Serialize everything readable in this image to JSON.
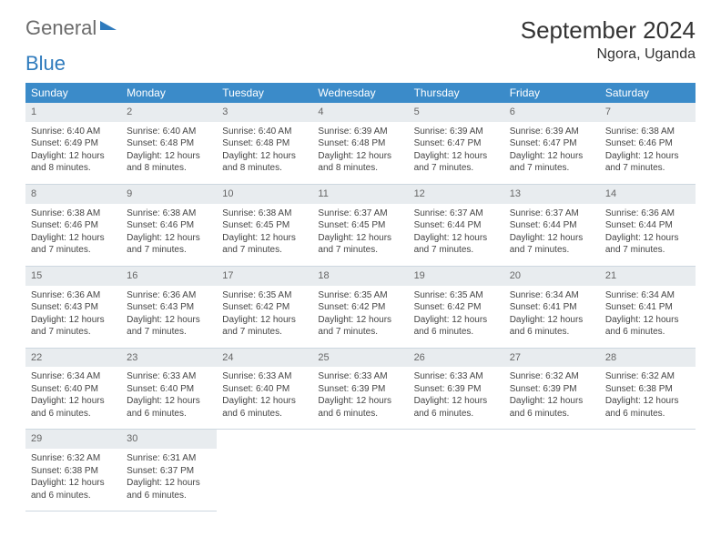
{
  "logo": {
    "word1": "General",
    "word2": "Blue"
  },
  "title": "September 2024",
  "location": "Ngora, Uganda",
  "weekdays": [
    "Sunday",
    "Monday",
    "Tuesday",
    "Wednesday",
    "Thursday",
    "Friday",
    "Saturday"
  ],
  "colors": {
    "header_bg": "#3b8bc9",
    "header_text": "#ffffff",
    "daynum_bg": "#e8ecef",
    "cell_border": "#cdd7e0",
    "logo_gray": "#6b6b6b",
    "logo_blue": "#2f7bbd"
  },
  "weeks": [
    [
      {
        "n": "1",
        "sr": "Sunrise: 6:40 AM",
        "ss": "Sunset: 6:49 PM",
        "dl": "Daylight: 12 hours and 8 minutes."
      },
      {
        "n": "2",
        "sr": "Sunrise: 6:40 AM",
        "ss": "Sunset: 6:48 PM",
        "dl": "Daylight: 12 hours and 8 minutes."
      },
      {
        "n": "3",
        "sr": "Sunrise: 6:40 AM",
        "ss": "Sunset: 6:48 PM",
        "dl": "Daylight: 12 hours and 8 minutes."
      },
      {
        "n": "4",
        "sr": "Sunrise: 6:39 AM",
        "ss": "Sunset: 6:48 PM",
        "dl": "Daylight: 12 hours and 8 minutes."
      },
      {
        "n": "5",
        "sr": "Sunrise: 6:39 AM",
        "ss": "Sunset: 6:47 PM",
        "dl": "Daylight: 12 hours and 7 minutes."
      },
      {
        "n": "6",
        "sr": "Sunrise: 6:39 AM",
        "ss": "Sunset: 6:47 PM",
        "dl": "Daylight: 12 hours and 7 minutes."
      },
      {
        "n": "7",
        "sr": "Sunrise: 6:38 AM",
        "ss": "Sunset: 6:46 PM",
        "dl": "Daylight: 12 hours and 7 minutes."
      }
    ],
    [
      {
        "n": "8",
        "sr": "Sunrise: 6:38 AM",
        "ss": "Sunset: 6:46 PM",
        "dl": "Daylight: 12 hours and 7 minutes."
      },
      {
        "n": "9",
        "sr": "Sunrise: 6:38 AM",
        "ss": "Sunset: 6:46 PM",
        "dl": "Daylight: 12 hours and 7 minutes."
      },
      {
        "n": "10",
        "sr": "Sunrise: 6:38 AM",
        "ss": "Sunset: 6:45 PM",
        "dl": "Daylight: 12 hours and 7 minutes."
      },
      {
        "n": "11",
        "sr": "Sunrise: 6:37 AM",
        "ss": "Sunset: 6:45 PM",
        "dl": "Daylight: 12 hours and 7 minutes."
      },
      {
        "n": "12",
        "sr": "Sunrise: 6:37 AM",
        "ss": "Sunset: 6:44 PM",
        "dl": "Daylight: 12 hours and 7 minutes."
      },
      {
        "n": "13",
        "sr": "Sunrise: 6:37 AM",
        "ss": "Sunset: 6:44 PM",
        "dl": "Daylight: 12 hours and 7 minutes."
      },
      {
        "n": "14",
        "sr": "Sunrise: 6:36 AM",
        "ss": "Sunset: 6:44 PM",
        "dl": "Daylight: 12 hours and 7 minutes."
      }
    ],
    [
      {
        "n": "15",
        "sr": "Sunrise: 6:36 AM",
        "ss": "Sunset: 6:43 PM",
        "dl": "Daylight: 12 hours and 7 minutes."
      },
      {
        "n": "16",
        "sr": "Sunrise: 6:36 AM",
        "ss": "Sunset: 6:43 PM",
        "dl": "Daylight: 12 hours and 7 minutes."
      },
      {
        "n": "17",
        "sr": "Sunrise: 6:35 AM",
        "ss": "Sunset: 6:42 PM",
        "dl": "Daylight: 12 hours and 7 minutes."
      },
      {
        "n": "18",
        "sr": "Sunrise: 6:35 AM",
        "ss": "Sunset: 6:42 PM",
        "dl": "Daylight: 12 hours and 7 minutes."
      },
      {
        "n": "19",
        "sr": "Sunrise: 6:35 AM",
        "ss": "Sunset: 6:42 PM",
        "dl": "Daylight: 12 hours and 6 minutes."
      },
      {
        "n": "20",
        "sr": "Sunrise: 6:34 AM",
        "ss": "Sunset: 6:41 PM",
        "dl": "Daylight: 12 hours and 6 minutes."
      },
      {
        "n": "21",
        "sr": "Sunrise: 6:34 AM",
        "ss": "Sunset: 6:41 PM",
        "dl": "Daylight: 12 hours and 6 minutes."
      }
    ],
    [
      {
        "n": "22",
        "sr": "Sunrise: 6:34 AM",
        "ss": "Sunset: 6:40 PM",
        "dl": "Daylight: 12 hours and 6 minutes."
      },
      {
        "n": "23",
        "sr": "Sunrise: 6:33 AM",
        "ss": "Sunset: 6:40 PM",
        "dl": "Daylight: 12 hours and 6 minutes."
      },
      {
        "n": "24",
        "sr": "Sunrise: 6:33 AM",
        "ss": "Sunset: 6:40 PM",
        "dl": "Daylight: 12 hours and 6 minutes."
      },
      {
        "n": "25",
        "sr": "Sunrise: 6:33 AM",
        "ss": "Sunset: 6:39 PM",
        "dl": "Daylight: 12 hours and 6 minutes."
      },
      {
        "n": "26",
        "sr": "Sunrise: 6:33 AM",
        "ss": "Sunset: 6:39 PM",
        "dl": "Daylight: 12 hours and 6 minutes."
      },
      {
        "n": "27",
        "sr": "Sunrise: 6:32 AM",
        "ss": "Sunset: 6:39 PM",
        "dl": "Daylight: 12 hours and 6 minutes."
      },
      {
        "n": "28",
        "sr": "Sunrise: 6:32 AM",
        "ss": "Sunset: 6:38 PM",
        "dl": "Daylight: 12 hours and 6 minutes."
      }
    ],
    [
      {
        "n": "29",
        "sr": "Sunrise: 6:32 AM",
        "ss": "Sunset: 6:38 PM",
        "dl": "Daylight: 12 hours and 6 minutes."
      },
      {
        "n": "30",
        "sr": "Sunrise: 6:31 AM",
        "ss": "Sunset: 6:37 PM",
        "dl": "Daylight: 12 hours and 6 minutes."
      },
      null,
      null,
      null,
      null,
      null
    ]
  ]
}
